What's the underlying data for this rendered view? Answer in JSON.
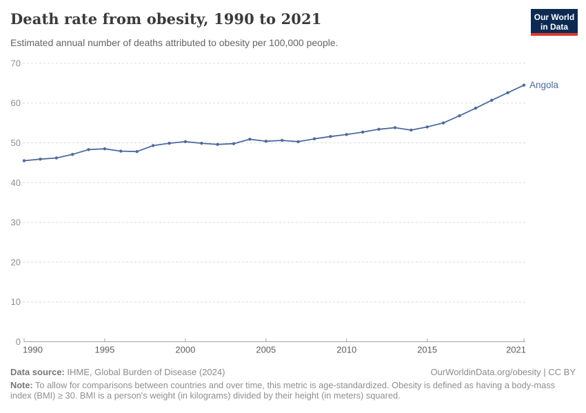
{
  "header": {
    "title": "Death rate from obesity, 1990 to 2021",
    "subtitle": "Estimated annual number of deaths attributed to obesity per 100,000 people."
  },
  "logo": {
    "line1": "Our World",
    "line2": "in Data",
    "bg_color": "#0D2A53",
    "stripe_color": "#DC3A32"
  },
  "chart_data": {
    "type": "line",
    "title": "Death rate from obesity, 1990 to 2021",
    "xlabel": "",
    "ylabel": "",
    "xlim": [
      1990,
      2021
    ],
    "ylim": [
      0,
      70
    ],
    "x_ticks": [
      1990,
      1995,
      2000,
      2005,
      2010,
      2015,
      2021
    ],
    "y_ticks": [
      0,
      10,
      20,
      30,
      40,
      50,
      60,
      70
    ],
    "grid": "horizontal-dashed",
    "legend": "series-end-label",
    "series": [
      {
        "name": "Angola",
        "color": "#4C6A9E",
        "x": [
          1990,
          1991,
          1992,
          1993,
          1994,
          1995,
          1996,
          1997,
          1998,
          1999,
          2000,
          2001,
          2002,
          2003,
          2004,
          2005,
          2006,
          2007,
          2008,
          2009,
          2010,
          2011,
          2012,
          2013,
          2014,
          2015,
          2016,
          2017,
          2018,
          2019,
          2020,
          2021
        ],
        "values": [
          45.5,
          45.9,
          46.2,
          47.1,
          48.3,
          48.5,
          47.9,
          47.8,
          49.3,
          49.9,
          50.3,
          49.9,
          49.6,
          49.8,
          50.9,
          50.4,
          50.6,
          50.3,
          51.0,
          51.6,
          52.1,
          52.7,
          53.4,
          53.8,
          53.2,
          54.0,
          55.0,
          56.8,
          58.7,
          60.7,
          62.6,
          64.5
        ]
      }
    ]
  },
  "theme": {
    "grid_color": "#dbdbdb",
    "axis_color": "#a5a5a5",
    "y_tick_label_color": "#8f8f8f",
    "x_tick_label_color": "#5e5e5e"
  },
  "footer": {
    "source_label": "Data source:",
    "source_text": " IHME, Global Burden of Disease (2024)",
    "rights": "OurWorldinData.org/obesity | CC BY",
    "note_label": "Note:",
    "note_line1": " To allow for comparisons between countries and over time, this metric is age-standardized. Obesity is defined as having a body-mass",
    "note_line2": "index (BMI) ≥ 30. BMI is a person's weight (in kilograms) divided by their height (in meters) squared."
  }
}
